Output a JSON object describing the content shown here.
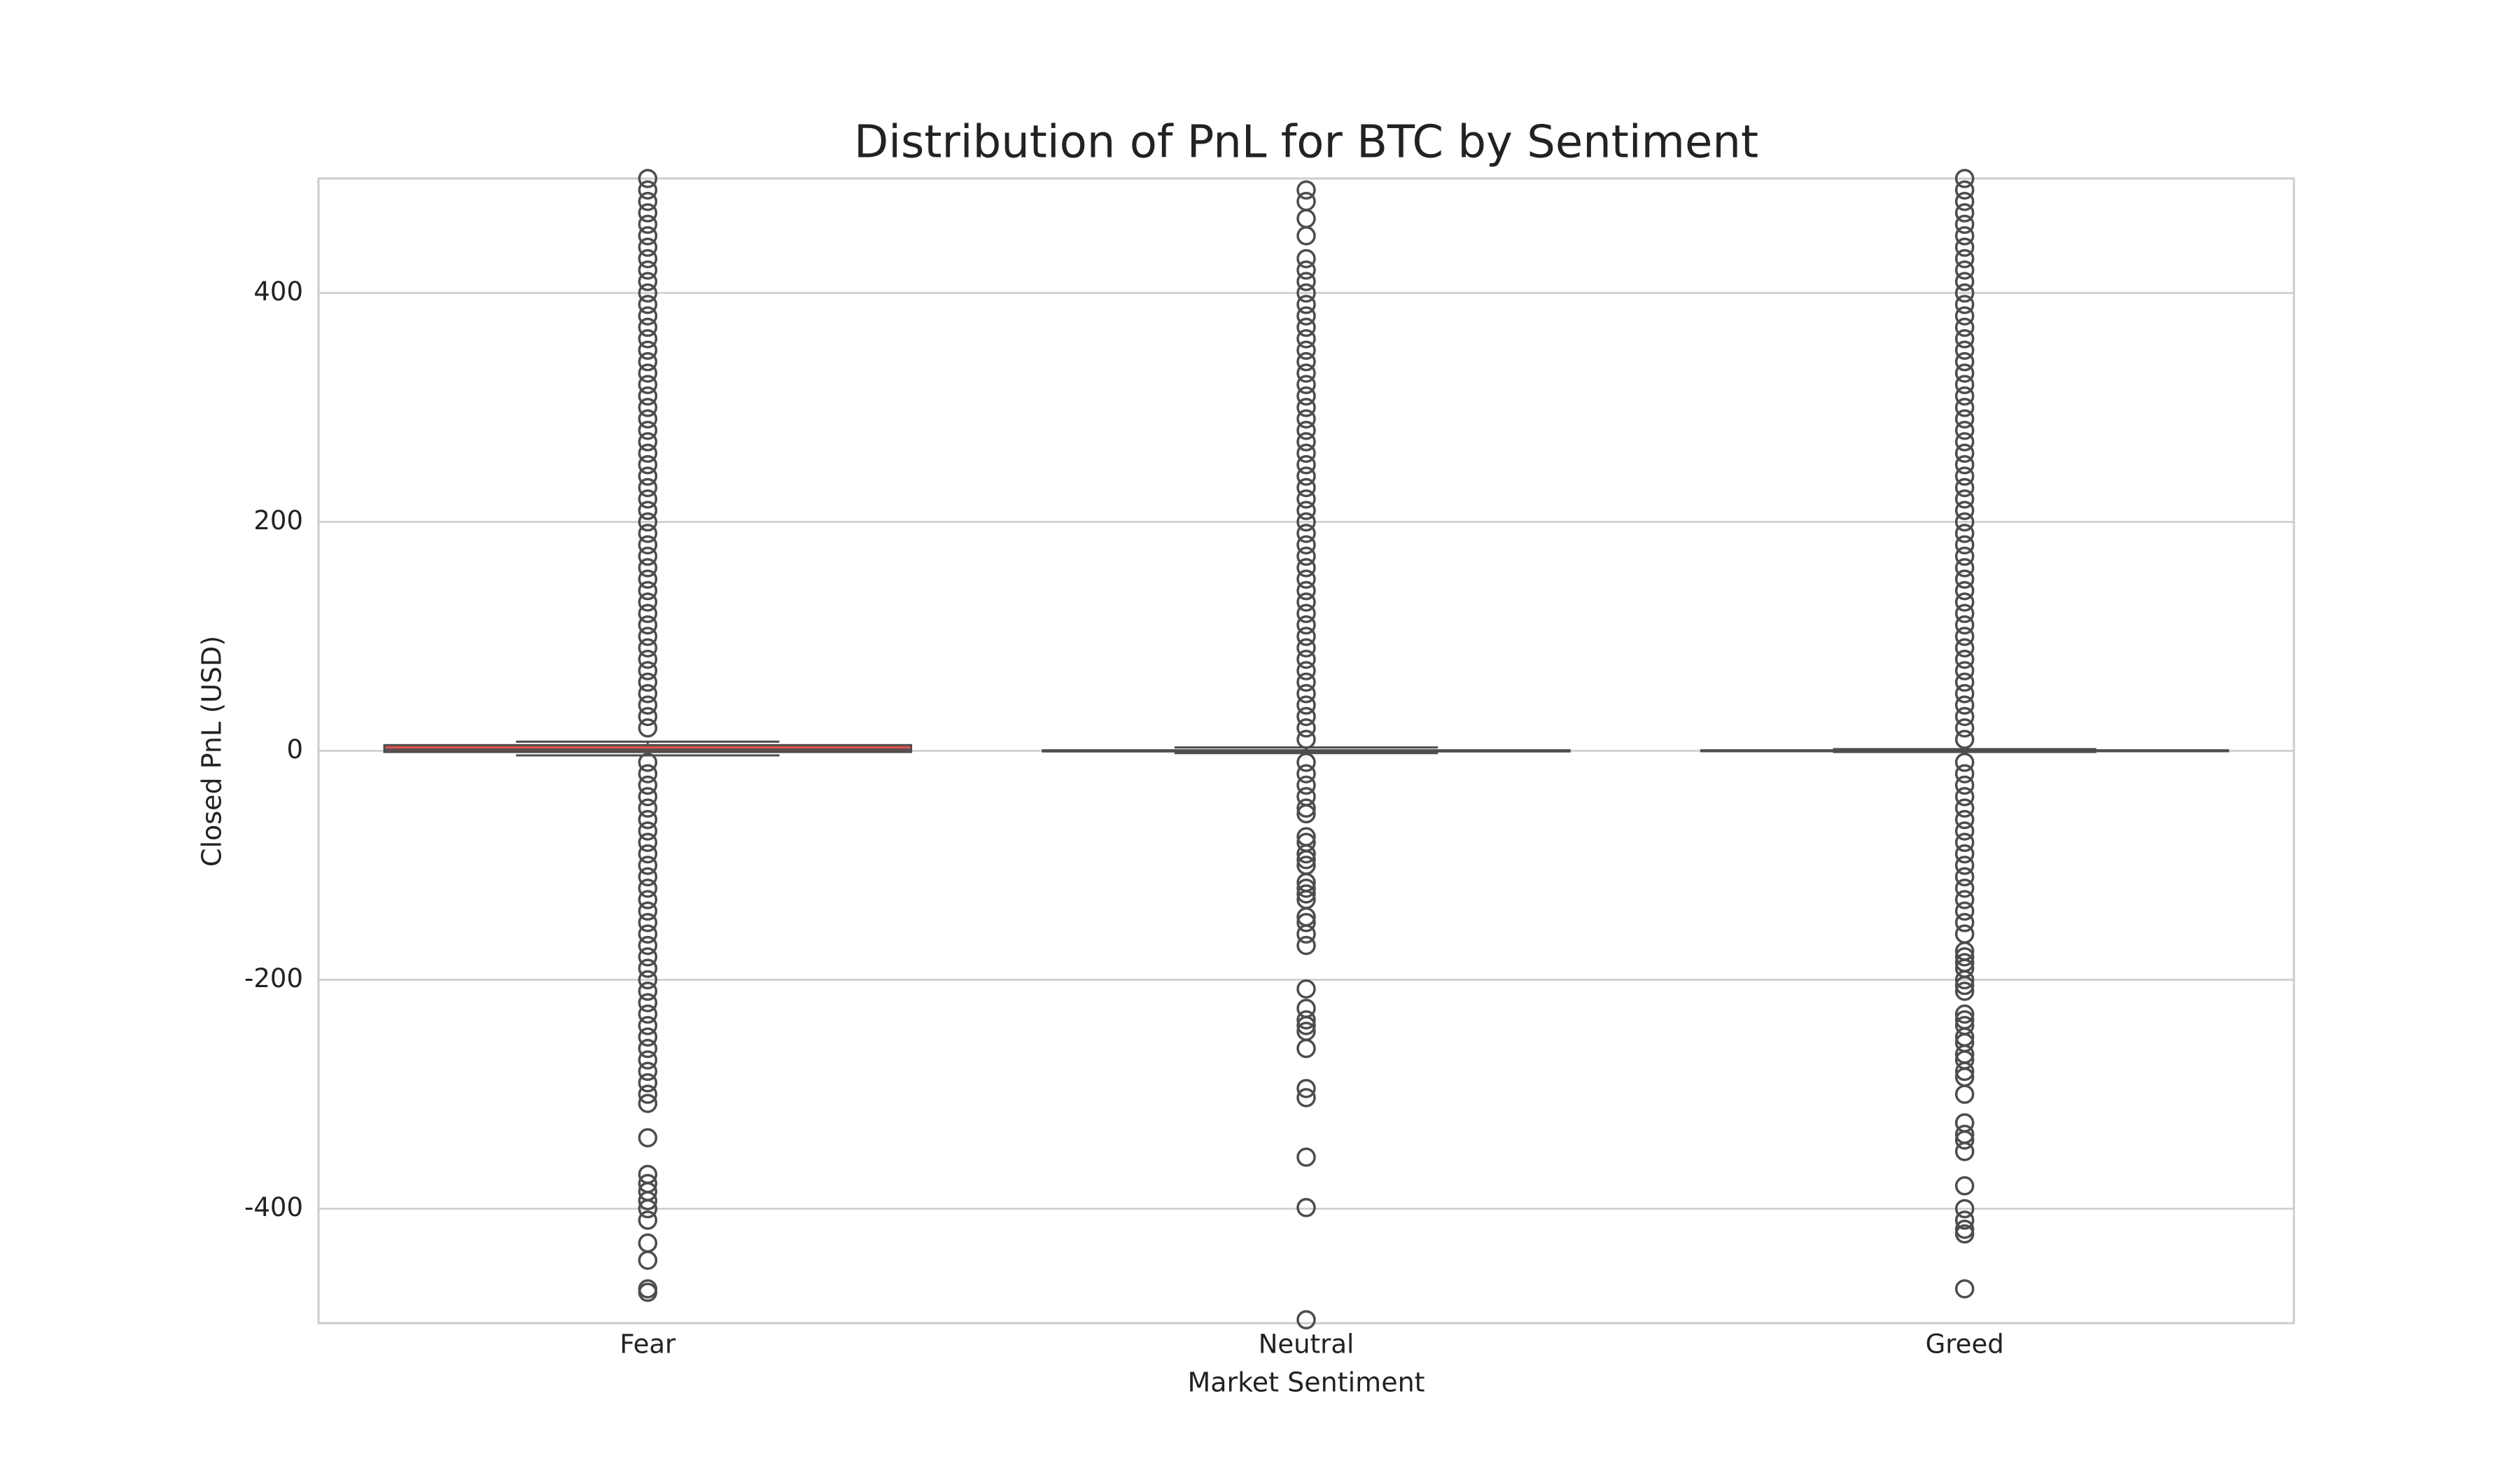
{
  "chart_data": {
    "type": "box",
    "title": "Distribution of PnL for BTC by Sentiment",
    "x_label": "Market Sentiment",
    "y_label": "Closed PnL (USD)",
    "categories": [
      "Fear",
      "Neutral",
      "Greed"
    ],
    "boxes": [
      {
        "color": "#d9534f",
        "whislo": -4,
        "q1": -1,
        "median": 1,
        "q3": 5,
        "whishi": 8,
        "outliers": [
          20,
          30,
          40,
          50,
          60,
          70,
          80,
          90,
          100,
          110,
          120,
          130,
          140,
          150,
          160,
          170,
          180,
          190,
          200,
          210,
          220,
          230,
          240,
          250,
          260,
          270,
          280,
          290,
          300,
          310,
          320,
          330,
          340,
          350,
          360,
          370,
          380,
          390,
          400,
          410,
          420,
          430,
          440,
          450,
          460,
          470,
          480,
          490,
          500,
          -10,
          -20,
          -30,
          -40,
          -50,
          -60,
          -70,
          -80,
          -90,
          -100,
          -110,
          -120,
          -130,
          -140,
          -150,
          -160,
          -170,
          -180,
          -190,
          -200,
          -210,
          -220,
          -230,
          -240,
          -250,
          -260,
          -270,
          -280,
          -290,
          -300,
          -308,
          -338,
          -370,
          -378,
          -385,
          -393,
          -400,
          -410,
          -430,
          -445,
          -470,
          -473
        ]
      },
      {
        "color": "#95a5a6",
        "whislo": -2,
        "q1": -0.5,
        "median": 0,
        "q3": 0.5,
        "whishi": 3,
        "outliers": [
          10,
          20,
          30,
          40,
          50,
          60,
          70,
          80,
          90,
          100,
          110,
          120,
          130,
          140,
          150,
          160,
          170,
          180,
          190,
          200,
          210,
          220,
          230,
          240,
          250,
          260,
          270,
          280,
          290,
          300,
          310,
          320,
          330,
          340,
          350,
          360,
          370,
          380,
          390,
          400,
          410,
          420,
          430,
          450,
          465,
          480,
          490,
          -10,
          -20,
          -30,
          -40,
          -50,
          -55,
          -75,
          -80,
          -90,
          -95,
          -100,
          -115,
          -120,
          -125,
          -130,
          -145,
          -150,
          -160,
          -170,
          -208,
          -225,
          -235,
          -240,
          -245,
          -260,
          -295,
          -303,
          -355,
          -399,
          -497
        ]
      },
      {
        "color": "#2ecc71",
        "whislo": -1,
        "q1": -0.3,
        "median": 0,
        "q3": 0.5,
        "whishi": 1.5,
        "outliers": [
          10,
          20,
          30,
          40,
          50,
          60,
          70,
          80,
          90,
          100,
          110,
          120,
          130,
          140,
          150,
          160,
          170,
          180,
          190,
          200,
          210,
          220,
          230,
          240,
          250,
          260,
          270,
          280,
          290,
          300,
          310,
          320,
          330,
          340,
          350,
          360,
          370,
          380,
          390,
          400,
          410,
          420,
          430,
          440,
          450,
          460,
          470,
          480,
          490,
          500,
          -10,
          -20,
          -30,
          -40,
          -50,
          -60,
          -70,
          -80,
          -90,
          -100,
          -110,
          -120,
          -130,
          -140,
          -150,
          -160,
          -175,
          -180,
          -185,
          -190,
          -200,
          -205,
          -210,
          -230,
          -235,
          -240,
          -250,
          -255,
          -265,
          -270,
          -280,
          -285,
          -300,
          -325,
          -335,
          -340,
          -350,
          -380,
          -400,
          -410,
          -418,
          -422,
          -470
        ]
      }
    ],
    "ylim": [
      -500,
      500
    ],
    "yticks": [
      -400,
      -200,
      0,
      200,
      400
    ],
    "grid": true
  }
}
